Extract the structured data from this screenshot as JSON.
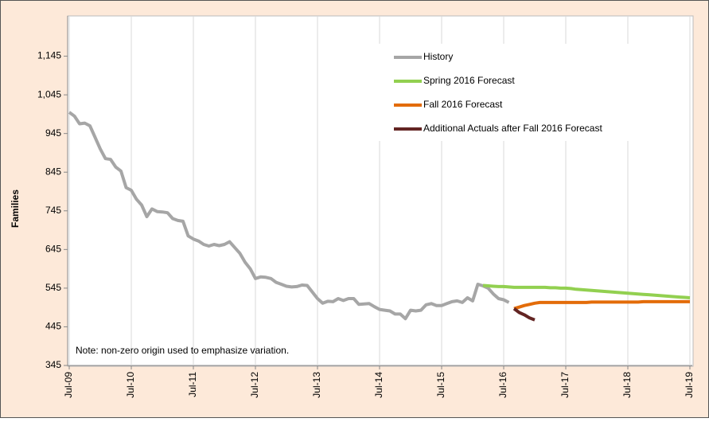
{
  "chart_data": {
    "type": "line",
    "ylabel": "Families",
    "note": "Note: non-zero origin used to emphasize variation.",
    "categories": [
      "Jul-09",
      null,
      null,
      null,
      null,
      null,
      null,
      null,
      null,
      null,
      null,
      null,
      "Jul-10",
      null,
      null,
      null,
      null,
      null,
      null,
      null,
      null,
      null,
      null,
      null,
      "Jul-11",
      null,
      null,
      null,
      null,
      null,
      null,
      null,
      null,
      null,
      null,
      null,
      "Jul-12",
      null,
      null,
      null,
      null,
      null,
      null,
      null,
      null,
      null,
      null,
      null,
      "Jul-13",
      null,
      null,
      null,
      null,
      null,
      null,
      null,
      null,
      null,
      null,
      null,
      "Jul-14",
      null,
      null,
      null,
      null,
      null,
      null,
      null,
      null,
      null,
      null,
      null,
      "Jul-15",
      null,
      null,
      null,
      null,
      null,
      null,
      null,
      null,
      null,
      null,
      null,
      "Jul-16",
      null,
      null,
      null,
      null,
      null,
      null,
      null,
      null,
      null,
      null,
      null,
      "Jul-17",
      null,
      null,
      null,
      null,
      null,
      null,
      null,
      null,
      null,
      null,
      null,
      "Jul-18",
      null,
      null,
      null,
      null,
      null,
      null,
      null,
      null,
      null,
      null,
      null,
      "Jul-19"
    ],
    "series": [
      {
        "name": "History",
        "color": "#a6a6a6",
        "values": [
          1000,
          990,
          970,
          972,
          965,
          935,
          905,
          880,
          878,
          858,
          848,
          805,
          798,
          775,
          760,
          730,
          750,
          743,
          742,
          740,
          725,
          720,
          718,
          680,
          672,
          667,
          658,
          654,
          658,
          655,
          658,
          665,
          650,
          635,
          612,
          595,
          570,
          574,
          573,
          570,
          560,
          555,
          550,
          548,
          549,
          553,
          552,
          535,
          518,
          506,
          511,
          510,
          518,
          513,
          518,
          518,
          503,
          504,
          505,
          497,
          490,
          488,
          486,
          478,
          478,
          466,
          488,
          486,
          488,
          502,
          505,
          500,
          500,
          505,
          510,
          512,
          508,
          520,
          512,
          555,
          551,
          545,
          530,
          518,
          515,
          508,
          null,
          null,
          null,
          null,
          null,
          null,
          null,
          null,
          null,
          null,
          null,
          null,
          null,
          null,
          null,
          null,
          null,
          null,
          null,
          null,
          null,
          null,
          null,
          null,
          null,
          null,
          null,
          null,
          null,
          null,
          null,
          null,
          null,
          null,
          null
        ]
      },
      {
        "name": "Spring 2016 Forecast",
        "color": "#92d050",
        "values": [
          null,
          null,
          null,
          null,
          null,
          null,
          null,
          null,
          null,
          null,
          null,
          null,
          null,
          null,
          null,
          null,
          null,
          null,
          null,
          null,
          null,
          null,
          null,
          null,
          null,
          null,
          null,
          null,
          null,
          null,
          null,
          null,
          null,
          null,
          null,
          null,
          null,
          null,
          null,
          null,
          null,
          null,
          null,
          null,
          null,
          null,
          null,
          null,
          null,
          null,
          null,
          null,
          null,
          null,
          null,
          null,
          null,
          null,
          null,
          null,
          null,
          null,
          null,
          null,
          null,
          null,
          null,
          null,
          null,
          null,
          null,
          null,
          null,
          null,
          null,
          null,
          null,
          null,
          null,
          null,
          552,
          551,
          550,
          549,
          549,
          548,
          547,
          547,
          547,
          547,
          547,
          547,
          547,
          546,
          546,
          545,
          545,
          544,
          542,
          541,
          540,
          539,
          538,
          537,
          536,
          535,
          534,
          533,
          532,
          531,
          530,
          529,
          528,
          527,
          526,
          525,
          524,
          523,
          522,
          521,
          520
        ]
      },
      {
        "name": "Fall 2016 Forecast",
        "color": "#e36c09",
        "values": [
          null,
          null,
          null,
          null,
          null,
          null,
          null,
          null,
          null,
          null,
          null,
          null,
          null,
          null,
          null,
          null,
          null,
          null,
          null,
          null,
          null,
          null,
          null,
          null,
          null,
          null,
          null,
          null,
          null,
          null,
          null,
          null,
          null,
          null,
          null,
          null,
          null,
          null,
          null,
          null,
          null,
          null,
          null,
          null,
          null,
          null,
          null,
          null,
          null,
          null,
          null,
          null,
          null,
          null,
          null,
          null,
          null,
          null,
          null,
          null,
          null,
          null,
          null,
          null,
          null,
          null,
          null,
          null,
          null,
          null,
          null,
          null,
          null,
          null,
          null,
          null,
          null,
          null,
          null,
          null,
          null,
          null,
          null,
          null,
          null,
          null,
          492,
          496,
          500,
          503,
          506,
          508,
          508,
          508,
          508,
          508,
          508,
          508,
          508,
          508,
          508,
          509,
          509,
          509,
          509,
          509,
          509,
          509,
          509,
          509,
          509,
          510,
          510,
          510,
          510,
          510,
          510,
          510,
          510,
          510,
          510
        ]
      },
      {
        "name": "Additional Actuals after Fall 2016 Forecast",
        "color": "#632523",
        "values": [
          null,
          null,
          null,
          null,
          null,
          null,
          null,
          null,
          null,
          null,
          null,
          null,
          null,
          null,
          null,
          null,
          null,
          null,
          null,
          null,
          null,
          null,
          null,
          null,
          null,
          null,
          null,
          null,
          null,
          null,
          null,
          null,
          null,
          null,
          null,
          null,
          null,
          null,
          null,
          null,
          null,
          null,
          null,
          null,
          null,
          null,
          null,
          null,
          null,
          null,
          null,
          null,
          null,
          null,
          null,
          null,
          null,
          null,
          null,
          null,
          null,
          null,
          null,
          null,
          null,
          null,
          null,
          null,
          null,
          null,
          null,
          null,
          null,
          null,
          null,
          null,
          null,
          null,
          null,
          null,
          null,
          null,
          null,
          null,
          null,
          null,
          492,
          482,
          476,
          468,
          463,
          null,
          null,
          null,
          null,
          null,
          null,
          null,
          null,
          null,
          null,
          null,
          null,
          null,
          null,
          null,
          null,
          null,
          null,
          null,
          null,
          null,
          null,
          null,
          null,
          null,
          null,
          null,
          null,
          null,
          null
        ]
      }
    ],
    "ylim": [
      345,
      1245
    ],
    "yticks": [
      345,
      445,
      545,
      645,
      745,
      845,
      945,
      {
        "value": 1045,
        "label": "1,045"
      },
      {
        "value": 1145,
        "label": "1,145"
      }
    ],
    "grid": "x",
    "legend": "upper right"
  }
}
